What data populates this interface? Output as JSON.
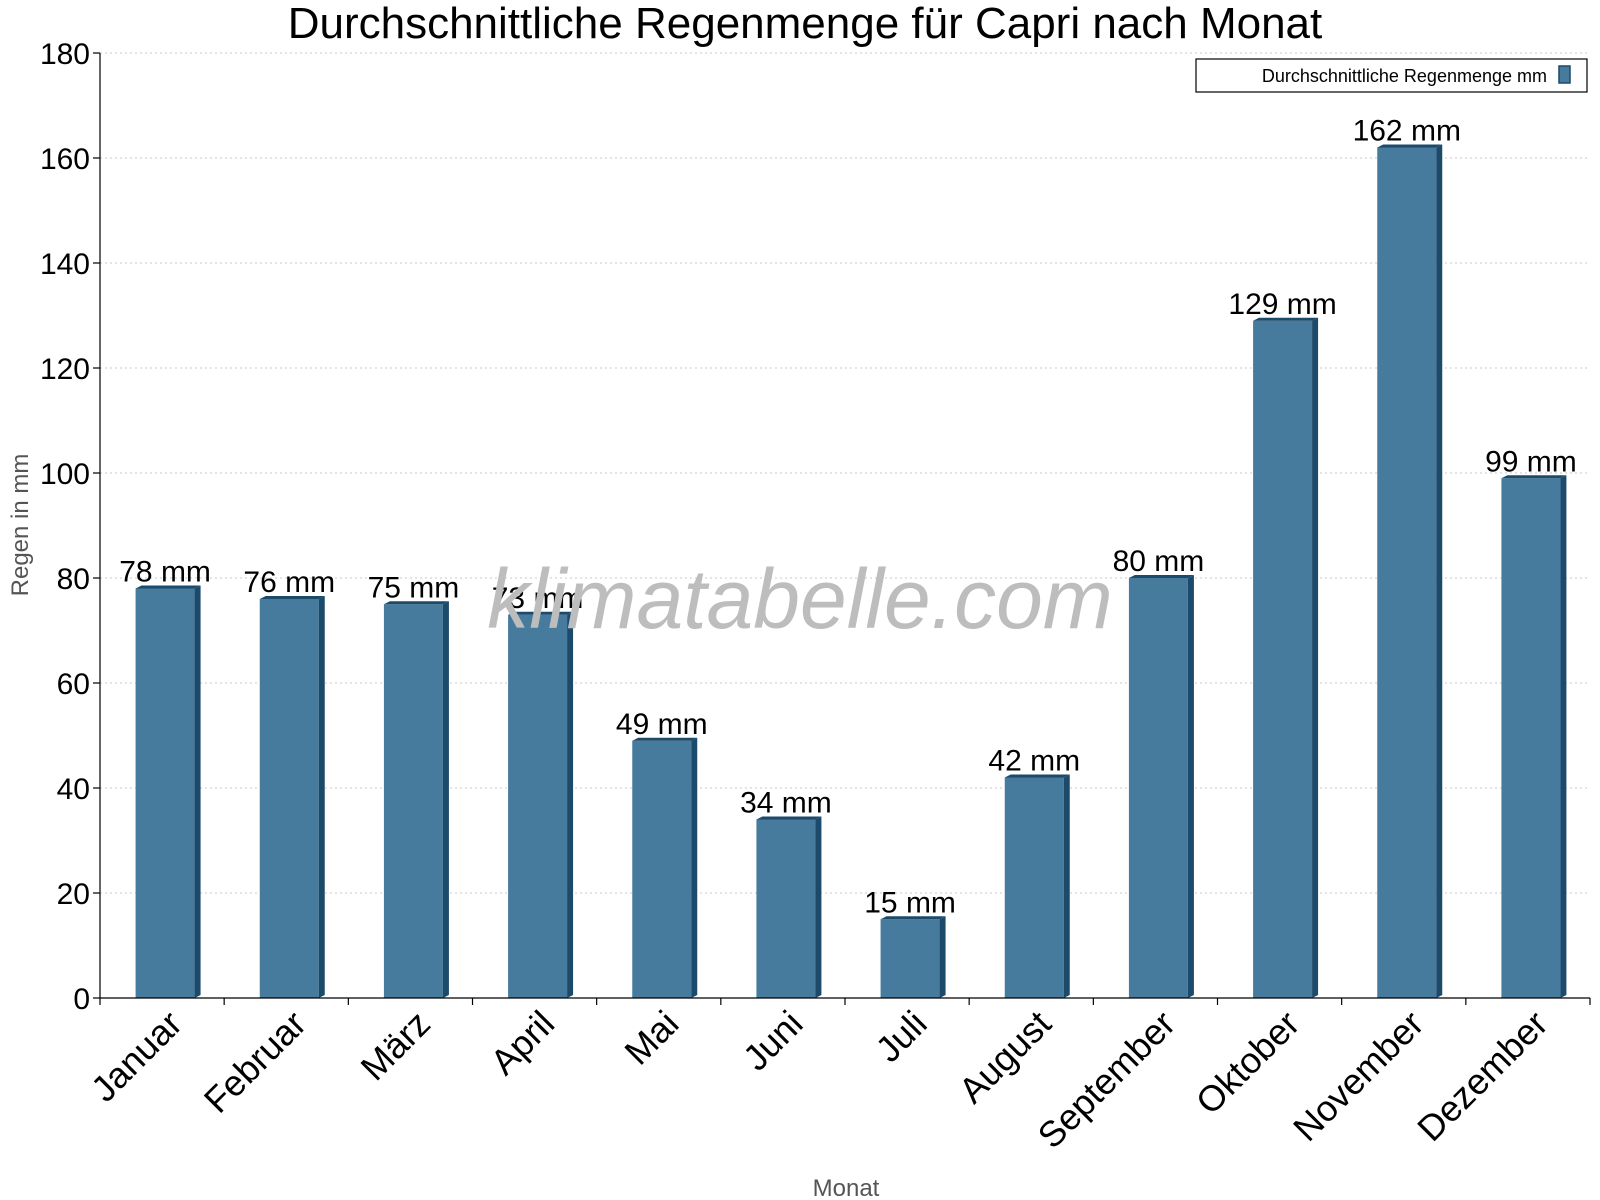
{
  "chart_data": {
    "type": "bar",
    "title": "Durchschnittliche Regenmenge für Capri nach Monat",
    "xlabel": "Monat",
    "ylabel": "Regen in mm",
    "ylim": [
      0,
      180
    ],
    "yticks": [
      0,
      20,
      40,
      60,
      80,
      100,
      120,
      140,
      160,
      180
    ],
    "grid": true,
    "legend_position": "top-right",
    "categories": [
      "Januar",
      "Februar",
      "März",
      "April",
      "Mai",
      "Juni",
      "Juli",
      "August",
      "September",
      "Oktober",
      "November",
      "Dezember"
    ],
    "series": [
      {
        "name": "Durchschnittliche Regenmenge mm",
        "values": [
          78,
          76,
          75,
          73,
          49,
          34,
          15,
          42,
          80,
          129,
          162,
          99
        ],
        "labels": [
          "78 mm",
          "76 mm",
          "75 mm",
          "73 mm",
          "49 mm",
          "34 mm",
          "15 mm",
          "42 mm",
          "80 mm",
          "129 mm",
          "162 mm",
          "99 mm"
        ],
        "color": "#467b9d",
        "edge_color": "#1b4a6b"
      }
    ],
    "watermark": "klimatabelle.com"
  }
}
